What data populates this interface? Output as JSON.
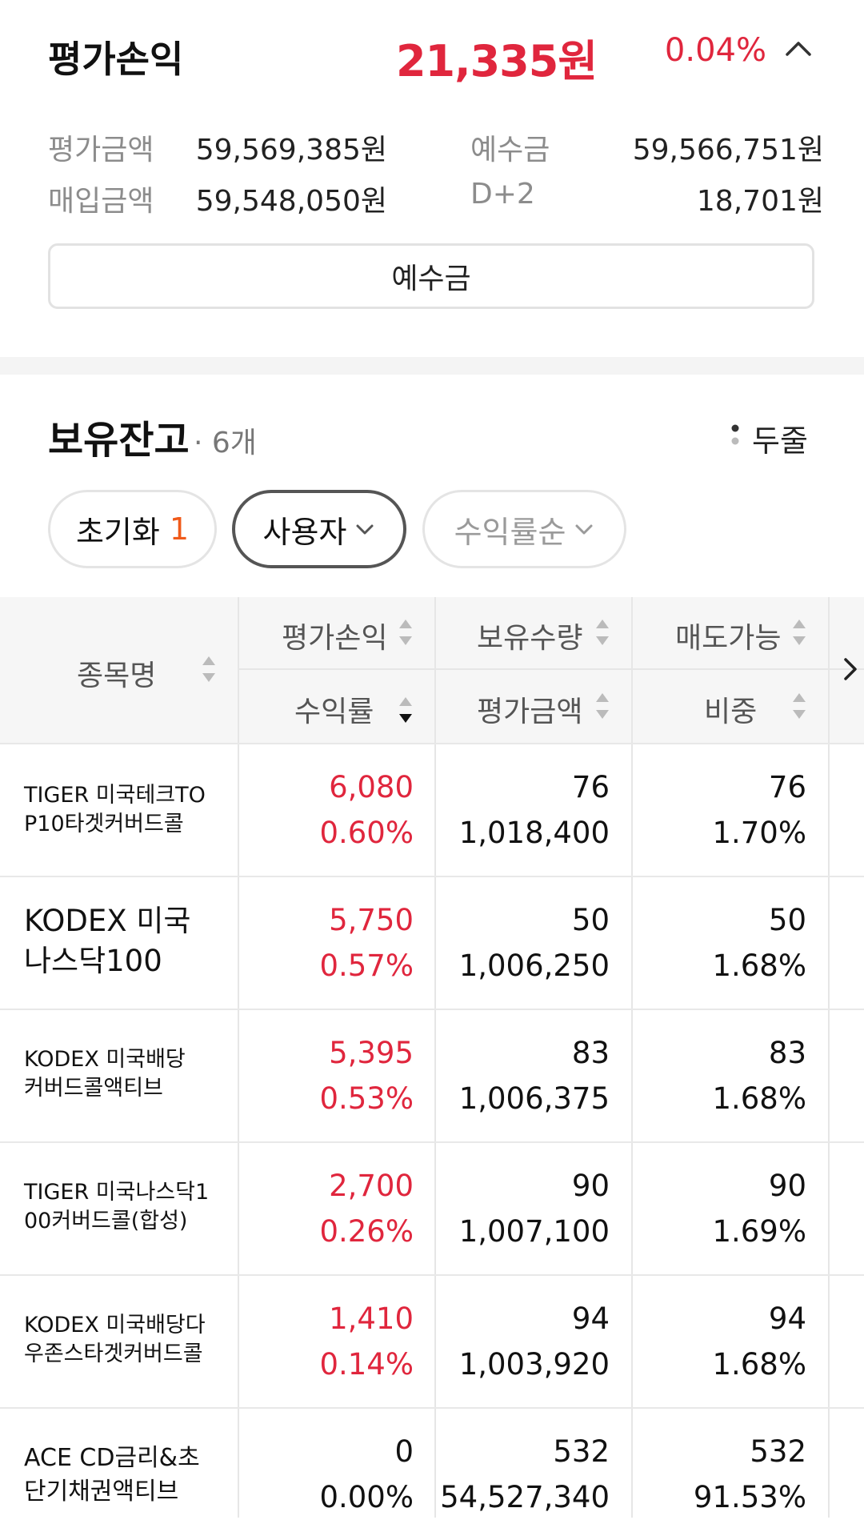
{
  "summary": {
    "title": "평가손익",
    "amount": "21,335원",
    "rate": "0.04%",
    "eval_label": "평가금액",
    "eval_value": "59,569,385원",
    "deposit_label": "예수금",
    "deposit_value": "59,566,751원",
    "buy_label": "매입금액",
    "buy_value": "59,548,050원",
    "d2_label": "D+2",
    "d2_value": "18,701원",
    "deposit_button": "예수금"
  },
  "holdings": {
    "title": "보유잔고",
    "count": "· 6개",
    "view_toggle": "두줄",
    "chips": {
      "reset_label": "초기화",
      "reset_count": "1",
      "user_label": "사용자",
      "sort_label": "수익률순"
    },
    "columns": {
      "name": "종목명",
      "pnl": "평가손익",
      "qty": "보유수량",
      "sellable": "매도가능",
      "rate": "수익률",
      "eval": "평가금액",
      "weight": "비중"
    },
    "rows": [
      {
        "name": "TIGER 미국테크TOP10타겟커버드콜",
        "name_lines": [
          "TIGER 미국테크TO",
          "P10타겟커버드콜"
        ],
        "pnl": "6,080",
        "rate": "0.60%",
        "qty": "76",
        "eval": "1,018,400",
        "sellable": "76",
        "weight": "1.70%"
      },
      {
        "name": "KODEX 미국나스닥100",
        "name_lines": [
          "KODEX 미국",
          "나스닥100"
        ],
        "pnl": "5,750",
        "rate": "0.57%",
        "qty": "50",
        "eval": "1,006,250",
        "sellable": "50",
        "weight": "1.68%"
      },
      {
        "name": "KODEX 미국배당커버드콜액티브",
        "name_lines": [
          "KODEX 미국배당",
          "커버드콜액티브"
        ],
        "pnl": "5,395",
        "rate": "0.53%",
        "qty": "83",
        "eval": "1,006,375",
        "sellable": "83",
        "weight": "1.68%"
      },
      {
        "name": "TIGER 미국나스닥100커버드콜(합성)",
        "name_lines": [
          "TIGER 미국나스닥1",
          "00커버드콜(합성)"
        ],
        "pnl": "2,700",
        "rate": "0.26%",
        "qty": "90",
        "eval": "1,007,100",
        "sellable": "90",
        "weight": "1.69%"
      },
      {
        "name": "KODEX 미국배당다우존스타겟커버드콜",
        "name_lines": [
          "KODEX 미국배당다",
          "우존스타겟커버드콜"
        ],
        "pnl": "1,410",
        "rate": "0.14%",
        "qty": "94",
        "eval": "1,003,920",
        "sellable": "94",
        "weight": "1.68%"
      },
      {
        "name": "ACE CD금리&초단기채권액티브",
        "name_lines": [
          "ACE CD금리&초",
          "단기채권액티브"
        ],
        "pnl": "0",
        "rate": "0.00%",
        "qty": "532",
        "eval": "54,527,340",
        "sellable": "532",
        "weight": "91.53%"
      }
    ]
  },
  "colors": {
    "accent_red": "#e0263d",
    "badge_orange": "#f05a1a"
  },
  "icons": [
    "chevron-up-icon",
    "vertical-dots-icon",
    "chevron-down-icon",
    "sort-icon",
    "chevron-right-icon"
  ]
}
